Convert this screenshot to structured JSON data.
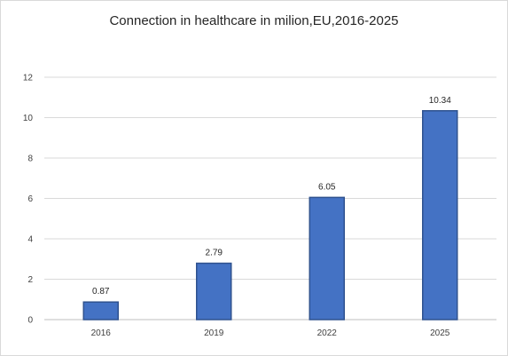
{
  "chart_data": {
    "type": "bar",
    "title": "Connection in healthcare in milion,EU,2016-2025",
    "xlabel": "",
    "ylabel": "",
    "categories": [
      "2016",
      "2019",
      "2022",
      "2025"
    ],
    "values": [
      0.87,
      2.79,
      6.05,
      10.34
    ],
    "value_labels": [
      "0.87",
      "2.79",
      "6.05",
      "10.34"
    ],
    "ylim": [
      0,
      12
    ],
    "yticks": [
      "0",
      "2",
      "4",
      "6",
      "8",
      "10",
      "12"
    ],
    "grid": true,
    "legend": "none",
    "bar_color": "#4472c4",
    "bar_edge_color": "#2f528f"
  }
}
